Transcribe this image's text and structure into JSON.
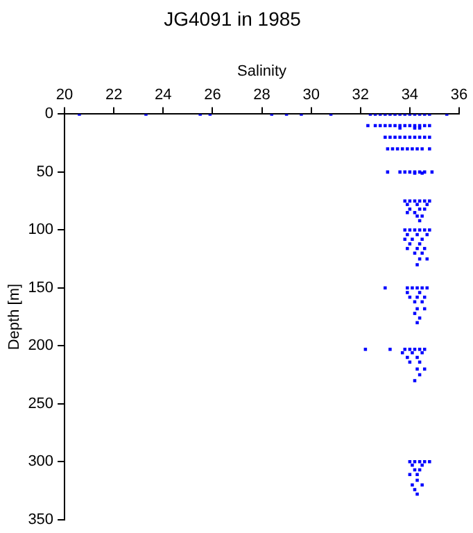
{
  "chart_data": {
    "type": "scatter",
    "title": "JG4091 in 1985",
    "xlabel": "Salinity",
    "ylabel": "Depth [m]",
    "xlim": [
      20,
      36
    ],
    "xticks": [
      20,
      22,
      24,
      26,
      28,
      30,
      32,
      34,
      36
    ],
    "ylim": [
      350,
      0
    ],
    "yticks": [
      0,
      50,
      100,
      150,
      200,
      250,
      300,
      350
    ],
    "grid": false,
    "legend": false,
    "marker": "square",
    "series": [
      {
        "color": "#0000ff",
        "x": [
          20.6,
          23.3,
          25.5,
          25.9,
          28.4,
          29.0,
          29.6,
          30.8,
          32.4,
          32.6,
          32.8,
          33.0,
          33.2,
          33.4,
          33.6,
          33.8,
          34.0,
          34.2,
          34.4,
          34.6,
          34.8,
          35.5,
          32.3,
          32.6,
          32.8,
          33.0,
          33.2,
          33.4,
          33.6,
          33.8,
          34.0,
          34.2,
          34.4,
          34.6,
          34.8,
          33.6,
          34.2,
          34.4,
          33.0,
          33.2,
          33.4,
          33.6,
          33.8,
          34.0,
          34.2,
          34.4,
          34.6,
          34.8,
          33.1,
          33.3,
          33.5,
          33.7,
          33.9,
          34.1,
          34.3,
          34.5,
          34.8,
          33.1,
          33.6,
          33.8,
          34.0,
          34.2,
          34.4,
          34.6,
          34.9,
          34.2,
          34.5,
          33.8,
          34.0,
          34.2,
          34.4,
          34.6,
          34.8,
          33.9,
          34.3,
          34.7,
          34.0,
          34.4,
          34.6,
          33.9,
          34.2,
          34.3,
          34.5,
          34.4,
          33.8,
          34.0,
          34.2,
          34.4,
          34.6,
          34.8,
          33.9,
          34.3,
          34.7,
          33.8,
          34.1,
          34.5,
          34.0,
          34.4,
          33.9,
          34.3,
          34.6,
          34.2,
          34.5,
          34.4,
          34.7,
          34.3,
          33.0,
          33.9,
          34.1,
          34.3,
          34.5,
          34.7,
          33.9,
          34.4,
          34.0,
          34.3,
          34.6,
          34.2,
          34.5,
          34.3,
          34.6,
          34.2,
          34.4,
          34.3,
          32.2,
          33.2,
          33.8,
          34.0,
          34.2,
          34.4,
          34.6,
          33.7,
          34.1,
          34.5,
          33.9,
          34.3,
          34.0,
          34.4,
          34.3,
          34.6,
          34.4,
          34.2,
          34.0,
          34.2,
          34.4,
          34.6,
          34.8,
          34.1,
          34.5,
          34.2,
          34.4,
          34.0,
          34.3,
          34.3,
          34.1,
          34.5,
          34.2,
          34.3
        ],
        "values": [
          0,
          0,
          0,
          0,
          0,
          0,
          0,
          0,
          0,
          0,
          0,
          0,
          0,
          0,
          0,
          0,
          0,
          0,
          0,
          0,
          0,
          0,
          10,
          10,
          10,
          10,
          10,
          10,
          10,
          10,
          10,
          10,
          10,
          10,
          10,
          12,
          12,
          12,
          20,
          20,
          20,
          20,
          20,
          20,
          20,
          20,
          20,
          20,
          30,
          30,
          30,
          30,
          30,
          30,
          30,
          30,
          30,
          50,
          50,
          50,
          50,
          50,
          50,
          50,
          50,
          51,
          51,
          75,
          75,
          75,
          75,
          75,
          75,
          78,
          78,
          78,
          82,
          82,
          82,
          85,
          85,
          88,
          88,
          92,
          100,
          100,
          100,
          100,
          100,
          100,
          104,
          104,
          104,
          108,
          108,
          108,
          112,
          112,
          116,
          116,
          116,
          120,
          120,
          125,
          125,
          130,
          150,
          150,
          150,
          150,
          150,
          150,
          154,
          154,
          158,
          158,
          158,
          162,
          162,
          168,
          168,
          172,
          176,
          180,
          203,
          203,
          203,
          203,
          203,
          203,
          203,
          206,
          206,
          206,
          210,
          210,
          214,
          214,
          220,
          220,
          225,
          230,
          300,
          300,
          300,
          300,
          300,
          303,
          303,
          307,
          307,
          311,
          311,
          316,
          320,
          320,
          324,
          328
        ]
      }
    ]
  }
}
